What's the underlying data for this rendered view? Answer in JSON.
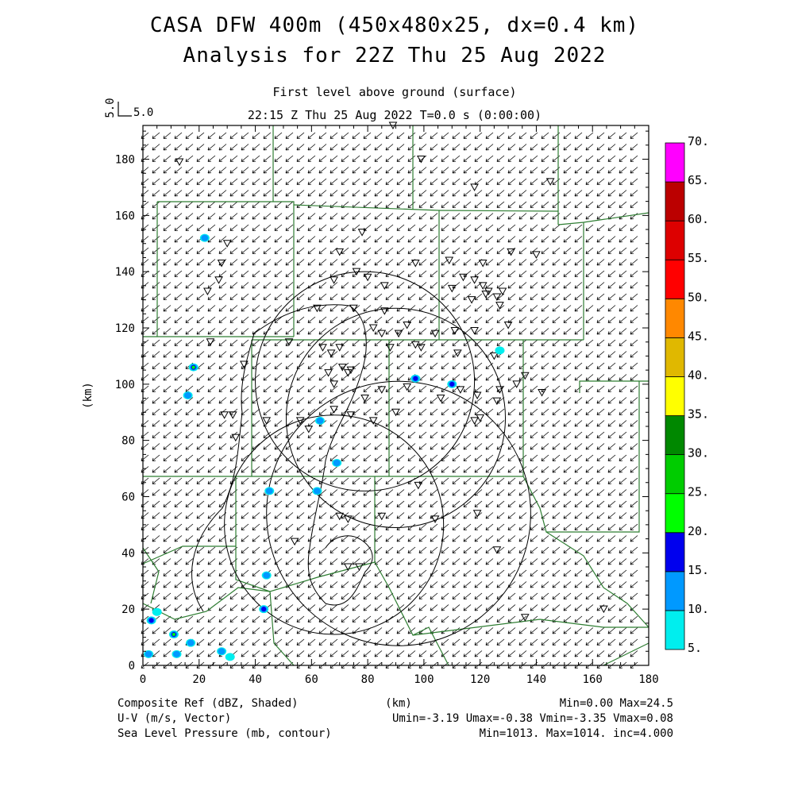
{
  "title": {
    "line1": "CASA DFW 400m (450x480x25, dx=0.4 km)",
    "line2": "Analysis for 22Z Thu 25 Aug 2022"
  },
  "subtitle": {
    "level": "First level above ground (surface)",
    "time": "22:15 Z Thu 25 Aug 2022    T=0.0 s (0:00:00)"
  },
  "vector_key": {
    "vertical": "5.0",
    "horizontal": "5.0"
  },
  "axes": {
    "xlabel": "(km)",
    "ylabel": "(km)",
    "x_ticks": [
      "0",
      "20",
      "40",
      "60",
      "80",
      "100",
      "120",
      "140",
      "160",
      "180"
    ],
    "y_ticks": [
      "0",
      "20",
      "40",
      "60",
      "80",
      "100",
      "120",
      "140",
      "160",
      "180"
    ]
  },
  "colorbar": {
    "labels": [
      "5.",
      "10.",
      "15.",
      "20.",
      "25.",
      "30.",
      "35.",
      "40.",
      "45.",
      "50.",
      "55.",
      "60.",
      "65.",
      "70."
    ],
    "colors": [
      "#00eeee",
      "#0099ff",
      "#0000ee",
      "#00ff00",
      "#00cc00",
      "#008800",
      "#ffff00",
      "#e0b800",
      "#ff8800",
      "#ff0000",
      "#dd0000",
      "#bb0000",
      "#ff00ff"
    ]
  },
  "footer": {
    "left1": "Composite Ref (dBZ, Shaded)",
    "left2": "U-V (m/s, Vector)",
    "left3": "Sea Level Pressure (mb, contour)",
    "center": "(km)",
    "right1": "Min=0.00 Max=24.5",
    "right2": "Umin=-3.19 Umax=-0.38 Vmin=-3.35 Vmax=0.08",
    "right3": "Min=1013. Max=1014. inc=4.000"
  },
  "chart_data": {
    "type": "heatmap",
    "xlim": [
      0,
      180
    ],
    "ylim": [
      0,
      192
    ],
    "radar_rings": [
      {
        "cx": 79,
        "cy": 101,
        "r": 39
      },
      {
        "cx": 90,
        "cy": 88,
        "r": 39
      },
      {
        "cx": 68,
        "cy": 50,
        "r": 39
      },
      {
        "cx": 91,
        "cy": 54,
        "r": 47
      }
    ],
    "echoes": [
      {
        "x": 22,
        "y": 152,
        "dbz": 14
      },
      {
        "x": 18,
        "y": 106,
        "dbz": 20
      },
      {
        "x": 16,
        "y": 96,
        "dbz": 14
      },
      {
        "x": 97,
        "y": 102,
        "dbz": 18
      },
      {
        "x": 110,
        "y": 100,
        "dbz": 16
      },
      {
        "x": 127,
        "y": 112,
        "dbz": 9
      },
      {
        "x": 63,
        "y": 87,
        "dbz": 12
      },
      {
        "x": 45,
        "y": 62,
        "dbz": 13
      },
      {
        "x": 62,
        "y": 62,
        "dbz": 14
      },
      {
        "x": 69,
        "y": 72,
        "dbz": 11
      },
      {
        "x": 44,
        "y": 32,
        "dbz": 12
      },
      {
        "x": 43,
        "y": 20,
        "dbz": 18
      },
      {
        "x": 3,
        "y": 16,
        "dbz": 17
      },
      {
        "x": 5,
        "y": 19,
        "dbz": 9
      },
      {
        "x": 11,
        "y": 11,
        "dbz": 24.5
      },
      {
        "x": 12,
        "y": 4,
        "dbz": 14
      },
      {
        "x": 2,
        "y": 4,
        "dbz": 14
      },
      {
        "x": 17,
        "y": 8,
        "dbz": 11
      },
      {
        "x": 28,
        "y": 5,
        "dbz": 12
      },
      {
        "x": 31,
        "y": 3,
        "dbz": 9
      }
    ],
    "stations": [
      [
        13,
        179
      ],
      [
        89,
        192
      ],
      [
        99,
        180
      ],
      [
        118,
        170
      ],
      [
        145,
        172
      ],
      [
        30,
        150
      ],
      [
        28,
        143
      ],
      [
        78,
        154
      ],
      [
        70,
        147
      ],
      [
        76,
        140
      ],
      [
        68,
        137
      ],
      [
        86,
        135
      ],
      [
        80,
        138
      ],
      [
        97,
        143
      ],
      [
        109,
        144
      ],
      [
        121,
        143
      ],
      [
        131,
        147
      ],
      [
        140,
        146
      ],
      [
        114,
        138
      ],
      [
        118,
        137
      ],
      [
        121,
        135
      ],
      [
        122,
        132
      ],
      [
        123,
        133
      ],
      [
        128,
        133
      ],
      [
        126,
        131
      ],
      [
        110,
        134
      ],
      [
        117,
        130
      ],
      [
        127,
        128
      ],
      [
        23,
        133
      ],
      [
        27,
        137
      ],
      [
        62,
        127
      ],
      [
        75,
        127
      ],
      [
        86,
        126
      ],
      [
        82,
        120
      ],
      [
        85,
        118
      ],
      [
        94,
        121
      ],
      [
        91,
        118
      ],
      [
        97,
        114
      ],
      [
        104,
        118
      ],
      [
        111,
        119
      ],
      [
        118,
        119
      ],
      [
        130,
        121
      ],
      [
        24,
        115
      ],
      [
        52,
        115
      ],
      [
        64,
        113
      ],
      [
        67,
        111
      ],
      [
        70,
        113
      ],
      [
        74,
        105
      ],
      [
        88,
        113
      ],
      [
        99,
        113
      ],
      [
        112,
        111
      ],
      [
        125,
        110
      ],
      [
        136,
        103
      ],
      [
        36,
        107
      ],
      [
        66,
        104
      ],
      [
        71,
        106
      ],
      [
        73,
        104
      ],
      [
        68,
        100
      ],
      [
        79,
        95
      ],
      [
        85,
        98
      ],
      [
        94,
        99
      ],
      [
        113,
        98
      ],
      [
        119,
        96
      ],
      [
        127,
        98
      ],
      [
        133,
        100
      ],
      [
        142,
        97
      ],
      [
        120,
        88
      ],
      [
        106,
        95
      ],
      [
        118,
        87
      ],
      [
        126,
        94
      ],
      [
        29,
        89
      ],
      [
        32,
        89
      ],
      [
        33,
        81
      ],
      [
        44,
        87
      ],
      [
        56,
        87
      ],
      [
        59,
        84
      ],
      [
        68,
        91
      ],
      [
        74,
        89
      ],
      [
        82,
        87
      ],
      [
        90,
        90
      ],
      [
        98,
        64
      ],
      [
        85,
        53
      ],
      [
        70,
        53
      ],
      [
        73,
        52
      ],
      [
        104,
        52
      ],
      [
        119,
        54
      ],
      [
        126,
        41
      ],
      [
        54,
        44
      ],
      [
        73,
        35
      ],
      [
        77,
        35
      ],
      [
        136,
        17
      ],
      [
        164,
        20
      ]
    ],
    "regions": "county boundaries, DFW area"
  }
}
